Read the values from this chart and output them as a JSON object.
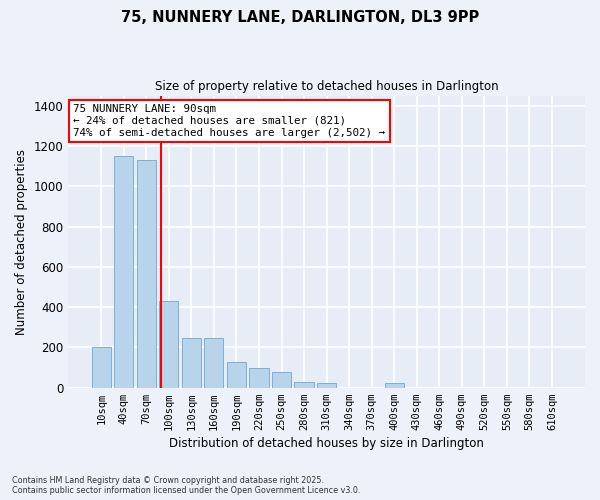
{
  "title": "75, NUNNERY LANE, DARLINGTON, DL3 9PP",
  "subtitle": "Size of property relative to detached houses in Darlington",
  "xlabel": "Distribution of detached houses by size in Darlington",
  "ylabel": "Number of detached properties",
  "bar_labels": [
    "10sqm",
    "40sqm",
    "70sqm",
    "100sqm",
    "130sqm",
    "160sqm",
    "190sqm",
    "220sqm",
    "250sqm",
    "280sqm",
    "310sqm",
    "340sqm",
    "370sqm",
    "400sqm",
    "430sqm",
    "460sqm",
    "490sqm",
    "520sqm",
    "550sqm",
    "580sqm",
    "610sqm"
  ],
  "bar_values": [
    200,
    1150,
    1130,
    430,
    245,
    245,
    130,
    100,
    80,
    30,
    25,
    0,
    0,
    25,
    0,
    0,
    0,
    0,
    0,
    0,
    0
  ],
  "bar_color": "#b8d4ea",
  "bar_edge_color": "#7bafd4",
  "ylim": [
    0,
    1450
  ],
  "yticks": [
    0,
    200,
    400,
    600,
    800,
    1000,
    1200,
    1400
  ],
  "bg_color": "#e6edf7",
  "grid_color": "#ffffff",
  "annotation_title": "75 NUNNERY LANE: 90sqm",
  "annotation_line1": "← 24% of detached houses are smaller (821)",
  "annotation_line2": "74% of semi-detached houses are larger (2,502) →",
  "footnote1": "Contains HM Land Registry data © Crown copyright and database right 2025.",
  "footnote2": "Contains public sector information licensed under the Open Government Licence v3.0.",
  "fig_bg": "#edf1f9"
}
